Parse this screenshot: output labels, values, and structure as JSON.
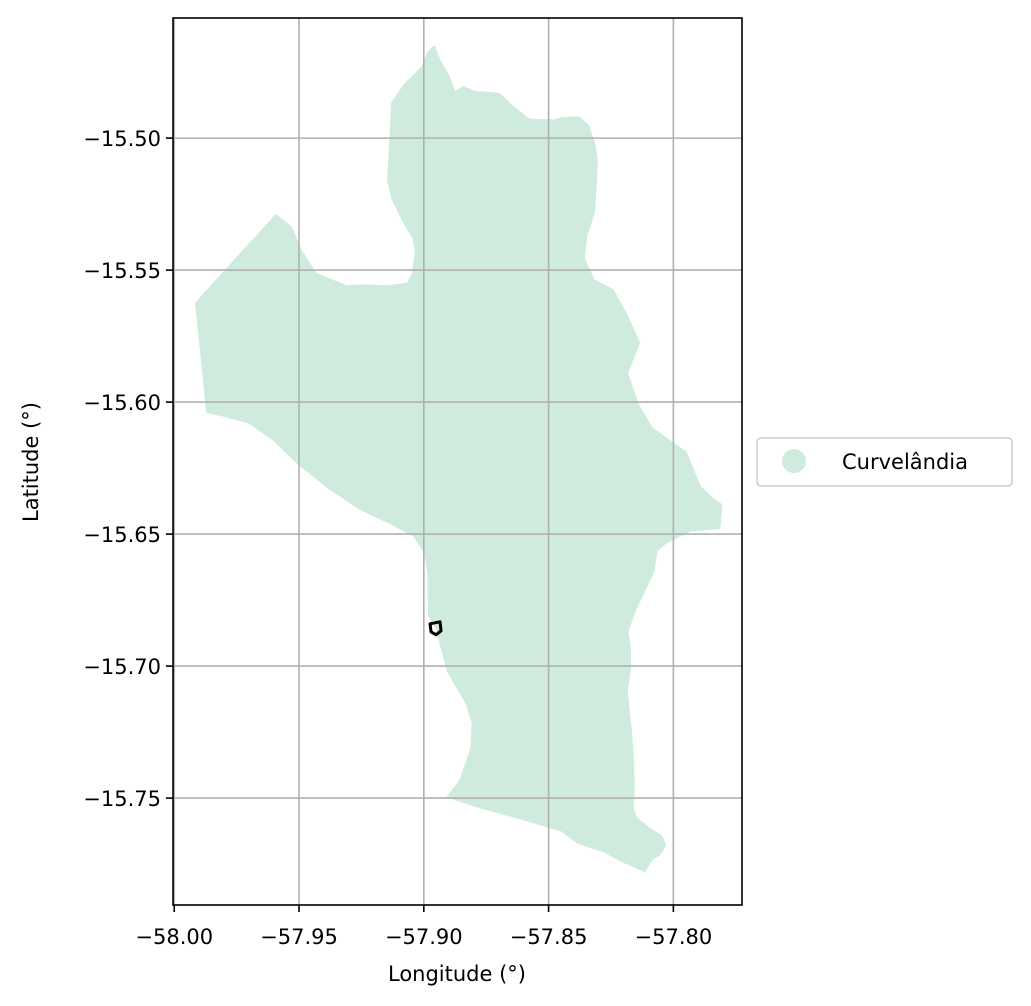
{
  "chart_data": {
    "type": "map",
    "xlabel": "Longitude (°)",
    "ylabel": "Latitude (°)",
    "xlim": [
      -58.0005,
      -57.7725
    ],
    "ylim": [
      -15.7905,
      -15.4545
    ],
    "xticks": [
      -58.0,
      -57.95,
      -57.9,
      -57.85,
      -57.8
    ],
    "yticks": [
      -15.5,
      -15.55,
      -15.6,
      -15.65,
      -15.7,
      -15.75
    ],
    "xtick_labels": [
      "−58.00",
      "−57.95",
      "−57.90",
      "−57.85",
      "−57.80"
    ],
    "ytick_labels": [
      "−15.50",
      "−15.55",
      "−15.60",
      "−15.65",
      "−15.70",
      "−15.75"
    ],
    "grid": true,
    "legend": {
      "placement": "outside-right-center",
      "entries": [
        {
          "label": "Curvelândia",
          "color": "#cfebde"
        }
      ]
    },
    "region": {
      "name": "Curvelândia",
      "fill": "#cfebde",
      "boundary": [
        [
          -57.9917,
          -15.5623
        ],
        [
          -57.9593,
          -15.5287
        ],
        [
          -57.9528,
          -15.5335
        ],
        [
          -57.949,
          -15.5422
        ],
        [
          -57.943,
          -15.5511
        ],
        [
          -57.9309,
          -15.5557
        ],
        [
          -57.9245,
          -15.5554
        ],
        [
          -57.9138,
          -15.5557
        ],
        [
          -57.9067,
          -15.5547
        ],
        [
          -57.9049,
          -15.5515
        ],
        [
          -57.9036,
          -15.5433
        ],
        [
          -57.9045,
          -15.5383
        ],
        [
          -57.9088,
          -15.5311
        ],
        [
          -57.913,
          -15.523
        ],
        [
          -57.9147,
          -15.5161
        ],
        [
          -57.9138,
          -15.4999
        ],
        [
          -57.9131,
          -15.4866
        ],
        [
          -57.908,
          -15.4795
        ],
        [
          -57.901,
          -15.4729
        ],
        [
          -57.8985,
          -15.4672
        ],
        [
          -57.8957,
          -15.4647
        ],
        [
          -57.8935,
          -15.47
        ],
        [
          -57.8897,
          -15.4763
        ],
        [
          -57.8875,
          -15.4821
        ],
        [
          -57.884,
          -15.4803
        ],
        [
          -57.8795,
          -15.4821
        ],
        [
          -57.8698,
          -15.4828
        ],
        [
          -57.8637,
          -15.4881
        ],
        [
          -57.8575,
          -15.4927
        ],
        [
          -57.8477,
          -15.4929
        ],
        [
          -57.8447,
          -15.492
        ],
        [
          -57.8377,
          -15.4917
        ],
        [
          -57.8338,
          -15.495
        ],
        [
          -57.8311,
          -15.5029
        ],
        [
          -57.8303,
          -15.5085
        ],
        [
          -57.8308,
          -15.5198
        ],
        [
          -57.8315,
          -15.5283
        ],
        [
          -57.8345,
          -15.5371
        ],
        [
          -57.8355,
          -15.5454
        ],
        [
          -57.8317,
          -15.5535
        ],
        [
          -57.824,
          -15.5573
        ],
        [
          -57.8183,
          -15.567
        ],
        [
          -57.8133,
          -15.5775
        ],
        [
          -57.8181,
          -15.5891
        ],
        [
          -57.814,
          -15.6005
        ],
        [
          -57.8084,
          -15.6095
        ],
        [
          -57.8007,
          -15.6148
        ],
        [
          -57.7947,
          -15.6187
        ],
        [
          -57.789,
          -15.6319
        ],
        [
          -57.7835,
          -15.6367
        ],
        [
          -57.7803,
          -15.6387
        ],
        [
          -57.7812,
          -15.6481
        ],
        [
          -57.793,
          -15.649
        ],
        [
          -57.8028,
          -15.6536
        ],
        [
          -57.8064,
          -15.6564
        ],
        [
          -57.8076,
          -15.6642
        ],
        [
          -57.8154,
          -15.6799
        ],
        [
          -57.818,
          -15.6871
        ],
        [
          -57.817,
          -15.6929
        ],
        [
          -57.817,
          -15.7017
        ],
        [
          -57.8183,
          -15.7091
        ],
        [
          -57.8174,
          -15.7173
        ],
        [
          -57.8166,
          -15.724
        ],
        [
          -57.8157,
          -15.737
        ],
        [
          -57.8155,
          -15.7467
        ],
        [
          -57.8158,
          -15.7541
        ],
        [
          -57.8144,
          -15.7575
        ],
        [
          -57.8096,
          -15.7611
        ],
        [
          -57.8044,
          -15.7642
        ],
        [
          -57.8029,
          -15.768
        ],
        [
          -57.8051,
          -15.7715
        ],
        [
          -57.8084,
          -15.7736
        ],
        [
          -57.8114,
          -15.7781
        ],
        [
          -57.8206,
          -15.7743
        ],
        [
          -57.8284,
          -15.7704
        ],
        [
          -57.8388,
          -15.7671
        ],
        [
          -57.8448,
          -15.7627
        ],
        [
          -57.8609,
          -15.7582
        ],
        [
          -57.8771,
          -15.754
        ],
        [
          -57.891,
          -15.7497
        ],
        [
          -57.8856,
          -15.743
        ],
        [
          -57.8813,
          -15.7309
        ],
        [
          -57.8808,
          -15.7216
        ],
        [
          -57.8832,
          -15.7143
        ],
        [
          -57.8869,
          -15.7084
        ],
        [
          -57.8907,
          -15.702
        ],
        [
          -57.8934,
          -15.6927
        ],
        [
          -57.8951,
          -15.686
        ],
        [
          -57.8983,
          -15.681
        ],
        [
          -57.8985,
          -15.6728
        ],
        [
          -57.8985,
          -15.6653
        ],
        [
          -57.8999,
          -15.6572
        ],
        [
          -57.9042,
          -15.6509
        ],
        [
          -57.9129,
          -15.6465
        ],
        [
          -57.9255,
          -15.6409
        ],
        [
          -57.9388,
          -15.6325
        ],
        [
          -57.9507,
          -15.6235
        ],
        [
          -57.9601,
          -15.6148
        ],
        [
          -57.97,
          -15.6082
        ],
        [
          -57.9804,
          -15.6055
        ],
        [
          -57.9872,
          -15.604
        ],
        [
          -57.9917,
          -15.5623
        ]
      ]
    },
    "marker": {
      "lon": -57.8955,
      "lat": -15.6855,
      "color": "#000000"
    }
  }
}
